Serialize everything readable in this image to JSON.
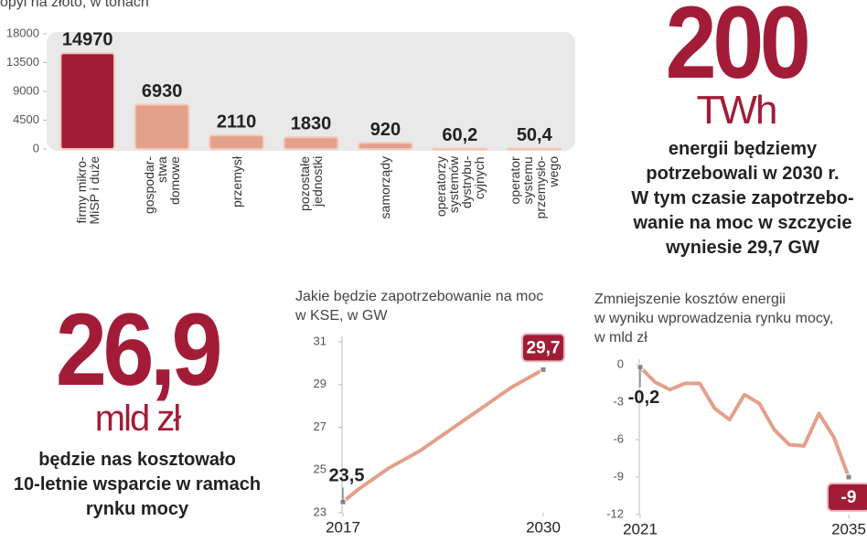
{
  "chart_data": [
    {
      "type": "bar",
      "title": "opyl na złoto, w tonach",
      "categories": [
        "firmy mikro-\nMiSP i duże",
        "gospodar-\nstwa\ndomowe",
        "przemysł",
        "pozostałe\njednostki",
        "samorządy",
        "operatorzy\nsystemów\ndystrybu-\ncyjnych",
        "operator\nsystemu\nprzemysło-\nwego"
      ],
      "values": [
        14970,
        6930,
        2110,
        1830,
        920,
        60.2,
        50.4
      ],
      "value_labels": [
        "14970",
        "6930",
        "2110",
        "1830",
        "920",
        "60,2",
        "50,4"
      ],
      "colors": [
        "#a31c37",
        "#e3a08a",
        "#e3a08a",
        "#e3a08a",
        "#e3a08a",
        "#e3a08a",
        "#e3a08a"
      ],
      "ylim": [
        0,
        18000
      ],
      "yticks": [
        0,
        4500,
        9000,
        13500,
        18000
      ]
    },
    {
      "type": "line",
      "title": "Jakie będzie zapotrzebowanie na moc\nw KSE, w GW",
      "x": [
        2017,
        2018,
        2019,
        2020,
        2021,
        2022,
        2023,
        2024,
        2025,
        2026,
        2027,
        2028,
        2029,
        2030
      ],
      "values": [
        23.5,
        24.1,
        24.6,
        25.1,
        25.5,
        25.9,
        26.4,
        26.9,
        27.4,
        27.9,
        28.4,
        28.9,
        29.3,
        29.7
      ],
      "value_labels": [
        "23,5",
        null,
        null,
        null,
        null,
        null,
        null,
        null,
        null,
        null,
        null,
        null,
        null,
        "29,7"
      ],
      "color": "#e3a08a",
      "xlim": [
        2017,
        2030
      ],
      "xticks": [
        2017,
        2030
      ],
      "ylim": [
        23,
        31
      ],
      "yticks": [
        23,
        25,
        27,
        29,
        31
      ]
    },
    {
      "type": "line",
      "title": "Zmniejszenie kosztów energii\nw wyniku wprowadzenia rynku mocy,\nw mld zł",
      "x": [
        2021,
        2022,
        2023,
        2024,
        2025,
        2026,
        2027,
        2028,
        2029,
        2030,
        2031,
        2032,
        2033,
        2034,
        2035
      ],
      "values": [
        -0.2,
        -1.4,
        -2.0,
        -1.5,
        -1.5,
        -3.5,
        -4.4,
        -2.4,
        -3.1,
        -5.2,
        -6.4,
        -6.5,
        -3.9,
        -5.8,
        -9
      ],
      "value_labels": [
        "-0,2",
        null,
        null,
        null,
        null,
        null,
        null,
        null,
        null,
        null,
        null,
        null,
        null,
        null,
        "-9"
      ],
      "color": "#e3a08a",
      "xlim": [
        2021,
        2035
      ],
      "xticks": [
        2021,
        2035
      ],
      "ylim": [
        -12,
        0
      ],
      "yticks": [
        0,
        -3,
        -6,
        -9,
        -12
      ]
    }
  ],
  "callouts": [
    {
      "number": "200",
      "unit": "TWh",
      "text": "energii będziemy\npotrzebowali w 2030 r.\nW tym czasie zapotrzebo-\nwanie na moc w szczycie\nwyniesie 29,7 GW"
    },
    {
      "number": "26,9",
      "unit": "mld zł",
      "text": "będzie nas kosztowało\n10-letnie wsparcie w ramach\nrynku mocy"
    }
  ]
}
